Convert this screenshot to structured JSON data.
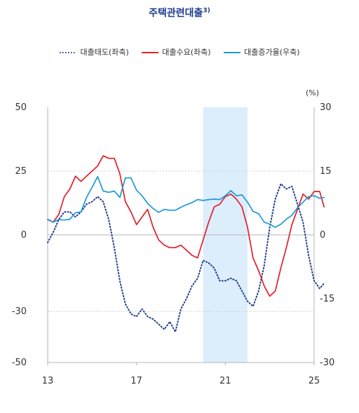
{
  "title": "주택관련대출",
  "title_note": "3)",
  "colors": {
    "attitude": "#1f3d8f",
    "demand": "#e0202a",
    "growth": "#1a9ad8",
    "shade": "#dcedfc",
    "grid": "#cfcfcf",
    "zero": "#b5b5b5"
  },
  "chart_data": {
    "type": "line",
    "title": "주택관련대출3)",
    "unit_right": "(%)",
    "left_axis": {
      "ylim": [
        -50,
        50
      ],
      "ticks": [
        50,
        25,
        0,
        -30,
        -50
      ],
      "tick_labels": [
        "50",
        "25",
        "0",
        "-30",
        "-50"
      ]
    },
    "right_axis": {
      "ylim": [
        -30,
        30
      ],
      "ticks": [
        30,
        15,
        0,
        -15,
        -30
      ],
      "tick_labels": [
        "30",
        "15",
        "0",
        "-15",
        "-30"
      ]
    },
    "xlim": [
      13,
      25
    ],
    "x_ticks": [
      13,
      17,
      21,
      25
    ],
    "x_tick_labels": [
      "13",
      "17",
      "21",
      "25"
    ],
    "shaded_region": [
      20.0,
      22.0
    ],
    "grid": "horizontal",
    "legend_position": "top-center",
    "series": [
      {
        "name": "대출태도(좌축)",
        "axis": "left",
        "style": "dotted",
        "color_key": "attitude",
        "points": [
          [
            13.0,
            -3
          ],
          [
            13.25,
            1
          ],
          [
            13.5,
            6
          ],
          [
            13.75,
            9
          ],
          [
            14.0,
            9
          ],
          [
            14.25,
            7
          ],
          [
            14.5,
            9
          ],
          [
            14.75,
            12
          ],
          [
            15.0,
            13
          ],
          [
            15.25,
            15
          ],
          [
            15.5,
            13
          ],
          [
            15.75,
            6
          ],
          [
            16.0,
            -5
          ],
          [
            16.25,
            -18
          ],
          [
            16.5,
            -27
          ],
          [
            16.75,
            -31
          ],
          [
            17.0,
            -32
          ],
          [
            17.25,
            -29
          ],
          [
            17.5,
            -32
          ],
          [
            17.75,
            -33
          ],
          [
            18.0,
            -35
          ],
          [
            18.25,
            -37
          ],
          [
            18.5,
            -34
          ],
          [
            18.75,
            -38
          ],
          [
            19.0,
            -29
          ],
          [
            19.25,
            -25
          ],
          [
            19.5,
            -20
          ],
          [
            19.75,
            -17
          ],
          [
            20.0,
            -10
          ],
          [
            20.25,
            -11
          ],
          [
            20.5,
            -13
          ],
          [
            20.75,
            -18
          ],
          [
            21.0,
            -18
          ],
          [
            21.25,
            -17
          ],
          [
            21.5,
            -18
          ],
          [
            21.75,
            -22
          ],
          [
            22.0,
            -26
          ],
          [
            22.25,
            -28
          ],
          [
            22.5,
            -22
          ],
          [
            22.75,
            -12
          ],
          [
            23.0,
            3
          ],
          [
            23.25,
            14
          ],
          [
            23.5,
            20
          ],
          [
            23.75,
            18
          ],
          [
            24.0,
            19
          ],
          [
            24.25,
            12
          ],
          [
            24.5,
            5
          ],
          [
            24.75,
            -8
          ],
          [
            25.0,
            -18
          ],
          [
            25.25,
            -21
          ],
          [
            25.45,
            -19
          ]
        ]
      },
      {
        "name": "대출수요(좌축)",
        "axis": "left",
        "style": "solid",
        "color_key": "demand",
        "points": [
          [
            13.0,
            6
          ],
          [
            13.25,
            5
          ],
          [
            13.5,
            8
          ],
          [
            13.75,
            15
          ],
          [
            14.0,
            18
          ],
          [
            14.25,
            23
          ],
          [
            14.5,
            21
          ],
          [
            14.75,
            23
          ],
          [
            15.0,
            25
          ],
          [
            15.25,
            27
          ],
          [
            15.5,
            31
          ],
          [
            15.75,
            30
          ],
          [
            16.0,
            30
          ],
          [
            16.25,
            24
          ],
          [
            16.5,
            13
          ],
          [
            16.75,
            9
          ],
          [
            17.0,
            4
          ],
          [
            17.25,
            7
          ],
          [
            17.5,
            10
          ],
          [
            17.75,
            3
          ],
          [
            18.0,
            -2
          ],
          [
            18.25,
            -4
          ],
          [
            18.5,
            -5
          ],
          [
            18.75,
            -5
          ],
          [
            19.0,
            -4
          ],
          [
            19.25,
            -6
          ],
          [
            19.5,
            -8
          ],
          [
            19.75,
            -9
          ],
          [
            20.0,
            -2
          ],
          [
            20.25,
            5
          ],
          [
            20.5,
            11
          ],
          [
            20.75,
            12
          ],
          [
            21.0,
            15
          ],
          [
            21.25,
            16
          ],
          [
            21.5,
            14
          ],
          [
            21.75,
            11
          ],
          [
            22.0,
            3
          ],
          [
            22.25,
            -9
          ],
          [
            22.5,
            -14
          ],
          [
            22.75,
            -20
          ],
          [
            23.0,
            -24
          ],
          [
            23.25,
            -22
          ],
          [
            23.5,
            -13
          ],
          [
            23.75,
            -5
          ],
          [
            24.0,
            4
          ],
          [
            24.25,
            10
          ],
          [
            24.5,
            16
          ],
          [
            24.75,
            14
          ],
          [
            25.0,
            17
          ],
          [
            25.25,
            17
          ],
          [
            25.45,
            11
          ]
        ]
      },
      {
        "name": "대출증가율(우축)",
        "axis": "right",
        "style": "solid",
        "color_key": "growth",
        "points": [
          [
            13.0,
            3.7
          ],
          [
            13.25,
            3.0
          ],
          [
            13.5,
            3.6
          ],
          [
            13.75,
            3.5
          ],
          [
            14.0,
            3.7
          ],
          [
            14.25,
            5.2
          ],
          [
            14.5,
            5.4
          ],
          [
            14.75,
            8.8
          ],
          [
            15.0,
            11.2
          ],
          [
            15.25,
            13.7
          ],
          [
            15.5,
            10.3
          ],
          [
            15.75,
            10.0
          ],
          [
            16.0,
            10.3
          ],
          [
            16.25,
            8.8
          ],
          [
            16.5,
            13.4
          ],
          [
            16.75,
            13.4
          ],
          [
            17.0,
            10.5
          ],
          [
            17.25,
            9.2
          ],
          [
            17.5,
            7.4
          ],
          [
            17.75,
            6.2
          ],
          [
            18.0,
            5.3
          ],
          [
            18.25,
            6.0
          ],
          [
            18.5,
            5.8
          ],
          [
            18.75,
            5.8
          ],
          [
            19.0,
            6.5
          ],
          [
            19.25,
            7.1
          ],
          [
            19.5,
            7.6
          ],
          [
            19.75,
            8.3
          ],
          [
            20.0,
            8.1
          ],
          [
            20.25,
            8.3
          ],
          [
            20.5,
            8.4
          ],
          [
            20.75,
            8.3
          ],
          [
            21.0,
            9.2
          ],
          [
            21.25,
            10.4
          ],
          [
            21.5,
            9.2
          ],
          [
            21.75,
            9.4
          ],
          [
            22.0,
            7.7
          ],
          [
            22.25,
            5.5
          ],
          [
            22.5,
            5.0
          ],
          [
            22.75,
            3.0
          ],
          [
            23.0,
            2.5
          ],
          [
            23.25,
            1.8
          ],
          [
            23.5,
            2.5
          ],
          [
            23.75,
            3.7
          ],
          [
            24.0,
            4.6
          ],
          [
            24.25,
            6.4
          ],
          [
            24.5,
            7.7
          ],
          [
            24.75,
            9.0
          ],
          [
            25.0,
            9.2
          ],
          [
            25.25,
            8.6
          ],
          [
            25.45,
            8.8
          ]
        ]
      }
    ]
  }
}
